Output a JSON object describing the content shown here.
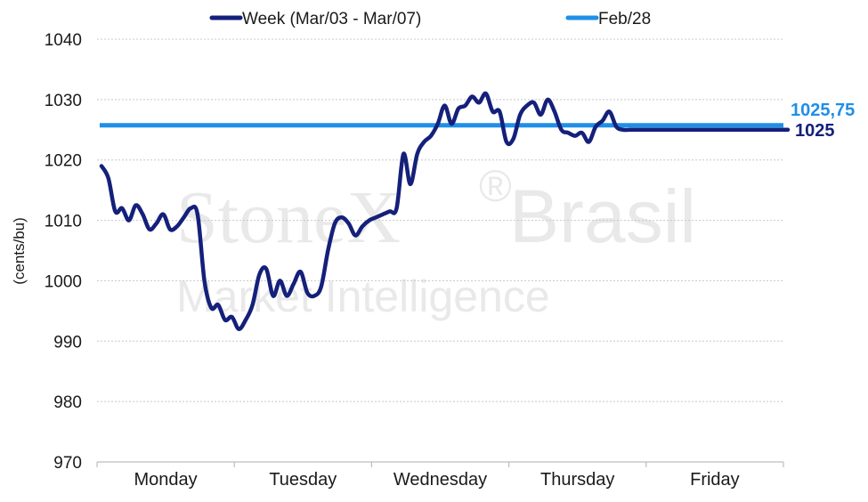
{
  "watermark": {
    "brand": "StoneX",
    "registered": "®",
    "region": "Brasil",
    "tagline": "Market Intelligence"
  },
  "chart_data": {
    "type": "line",
    "title": "",
    "xlabel": "",
    "ylabel": "(cents/bu)",
    "ylim": [
      970,
      1040
    ],
    "yticks": [
      970,
      980,
      990,
      1000,
      1010,
      1020,
      1030,
      1040
    ],
    "categories": [
      "Monday",
      "Tuesday",
      "Wednesday",
      "Thursday",
      "Friday"
    ],
    "grid": true,
    "legend_position": "top",
    "series": [
      {
        "name": "Week (Mar/03 - Mar/07)",
        "color": "#14207a",
        "end_label": "1025",
        "x": [
          0.0,
          0.05,
          0.1,
          0.15,
          0.2,
          0.25,
          0.3,
          0.35,
          0.4,
          0.45,
          0.5,
          0.55,
          0.6,
          0.65,
          0.7,
          0.75,
          0.8,
          0.85,
          0.9,
          0.95,
          1.0,
          1.05,
          1.1,
          1.15,
          1.2,
          1.25,
          1.3,
          1.35,
          1.4,
          1.45,
          1.5,
          1.55,
          1.6,
          1.65,
          1.7,
          1.75,
          1.8,
          1.85,
          1.9,
          1.95,
          2.0,
          2.05,
          2.1,
          2.15,
          2.2,
          2.25,
          2.3,
          2.35,
          2.4,
          2.45,
          2.5,
          2.55,
          2.6,
          2.65,
          2.7,
          2.75,
          2.8,
          2.85,
          2.9,
          2.95,
          3.0,
          3.05,
          3.1,
          3.15,
          3.2,
          3.25,
          3.3,
          3.35,
          3.4,
          3.45,
          3.5,
          3.55,
          3.6,
          3.65,
          3.7,
          3.75,
          3.8,
          3.85,
          3.9,
          3.95,
          4.0,
          4.05,
          4.1,
          4.15,
          4.2,
          4.25,
          4.3,
          4.35,
          4.4,
          4.45,
          4.5,
          4.55,
          4.6,
          4.65,
          4.7,
          4.75,
          4.8,
          4.85,
          4.9,
          4.95,
          5.0
        ],
        "values": [
          1019,
          1017,
          1011.5,
          1012,
          1010,
          1012.5,
          1011,
          1008.5,
          1009.5,
          1011,
          1008.5,
          1009,
          1010.5,
          1012,
          1011,
          1000,
          995.5,
          996,
          993.5,
          994,
          992,
          993.5,
          996,
          1001,
          1002,
          997.5,
          1000,
          997.5,
          999.5,
          1001.5,
          998,
          997.5,
          999,
          1005,
          1009.5,
          1010.5,
          1009.5,
          1007.5,
          1009,
          1010,
          1010.5,
          1011,
          1011.5,
          1012,
          1021,
          1016,
          1021,
          1023,
          1024,
          1026,
          1029,
          1026,
          1028.5,
          1029,
          1030.5,
          1029.5,
          1031,
          1028,
          1028,
          1023,
          1023.5,
          1027.5,
          1029,
          1029.5,
          1027.5,
          1030,
          1028,
          1025,
          1024.5,
          1024,
          1024.5,
          1023,
          1025.5,
          1026.5,
          1028,
          1025.5,
          1025,
          1025,
          1025,
          1025,
          1025,
          1025,
          1025,
          1025,
          1025,
          1025,
          1025,
          1025,
          1025,
          1025,
          1025,
          1025,
          1025,
          1025,
          1025,
          1025,
          1025,
          1025,
          1025,
          1025,
          1025
        ]
      },
      {
        "name": "Feb/28",
        "color": "#1f8fe8",
        "end_label": "1025,75",
        "constant": 1025.75
      }
    ]
  }
}
